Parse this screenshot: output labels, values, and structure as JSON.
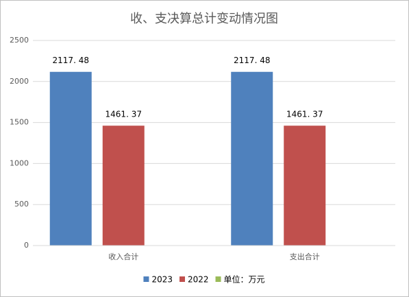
{
  "chart_data": {
    "type": "bar",
    "title": "收、支决算总计变动情况图",
    "categories": [
      "收入合计",
      "支出合计"
    ],
    "series": [
      {
        "name": "2023",
        "color": "#4f81bd",
        "values": [
          2117.48,
          2117.48
        ],
        "value_labels": [
          "2117. 48",
          "2117. 48"
        ]
      },
      {
        "name": "2022",
        "color": "#c0504d",
        "values": [
          1461.37,
          1461.37
        ],
        "value_labels": [
          "1461. 37",
          "1461. 37"
        ]
      },
      {
        "name": "单位：万元",
        "color": "#9bbb59",
        "values": [
          null,
          null
        ]
      }
    ],
    "ylim": [
      0,
      2500
    ],
    "yticks": [
      0,
      500,
      1000,
      1500,
      2000,
      2500
    ],
    "grid": true,
    "legend": "bottom"
  }
}
